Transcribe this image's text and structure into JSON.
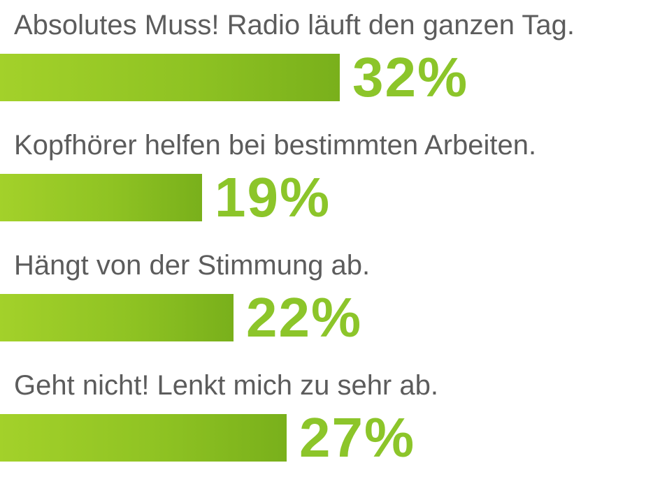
{
  "chart_data": {
    "type": "bar",
    "orientation": "horizontal",
    "categories": [
      "Absolutes Muss! Radio läuft den ganzen Tag.",
      "Kopfhörer helfen bei bestimmten Arbeiten.",
      "Hängt von der Stimmung ab.",
      "Geht nicht! Lenkt mich zu sehr ab."
    ],
    "values": [
      32,
      19,
      22,
      27
    ],
    "value_labels": [
      "32%",
      "19%",
      "22%",
      "27%"
    ],
    "unit": "%",
    "colors": {
      "bar": "#8fc323",
      "value_text": "#8cc52a",
      "label_text": "#5c5c5c"
    },
    "grid": false,
    "legend": "none"
  }
}
